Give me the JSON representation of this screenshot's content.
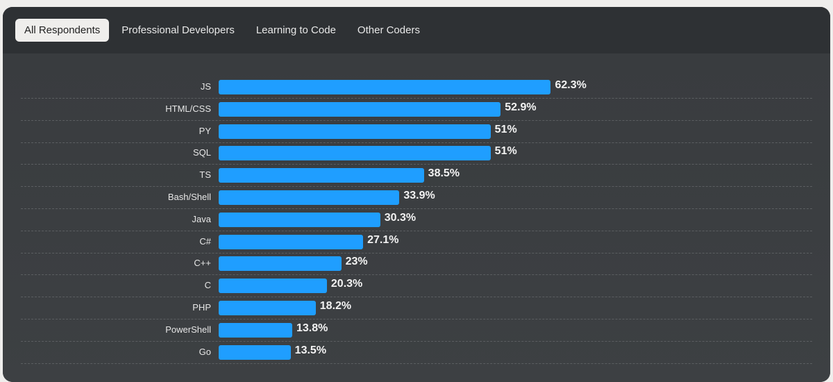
{
  "tabs": [
    {
      "label": "All Respondents",
      "active": true
    },
    {
      "label": "Professional Developers",
      "active": false
    },
    {
      "label": "Learning to Code",
      "active": false
    },
    {
      "label": "Other Coders",
      "active": false
    }
  ],
  "colors": {
    "bar": "#1f9eff"
  },
  "chart_data": {
    "type": "bar",
    "orientation": "horizontal",
    "categories": [
      "JS",
      "HTML/CSS",
      "PY",
      "SQL",
      "TS",
      "Bash/Shell",
      "Java",
      "C#",
      "C++",
      "C",
      "PHP",
      "PowerShell",
      "Go"
    ],
    "values": [
      62.3,
      52.9,
      51,
      51,
      38.5,
      33.9,
      30.3,
      27.1,
      23,
      20.3,
      18.2,
      13.8,
      13.5
    ],
    "labels": [
      "62.3%",
      "52.9%",
      "51%",
      "51%",
      "38.5%",
      "33.9%",
      "30.3%",
      "27.1%",
      "23%",
      "20.3%",
      "18.2%",
      "13.8%",
      "13.5%"
    ],
    "unit": "%",
    "xlim": [
      0,
      100
    ]
  }
}
